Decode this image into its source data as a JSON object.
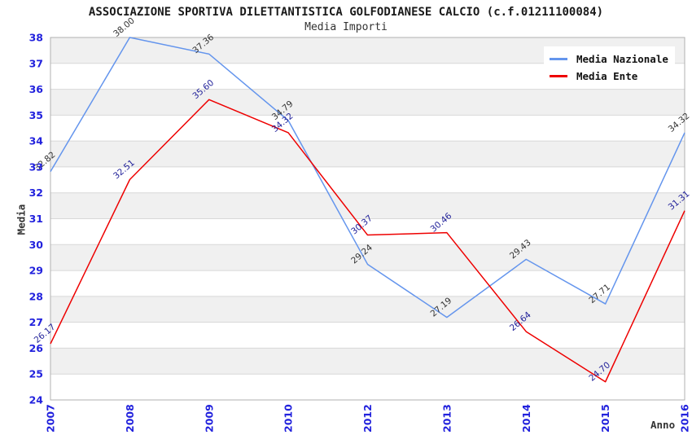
{
  "chart_data": {
    "type": "line",
    "title": "ASSOCIAZIONE SPORTIVA DILETTANTISTICA GOLFODIANESE CALCIO (c.f.01211100084)",
    "subtitle": "Media Importi",
    "xlabel": "Anno",
    "ylabel": "Media",
    "categories": [
      "2007",
      "2008",
      "2009",
      "2010",
      "2012",
      "2013",
      "2014",
      "2015",
      "2016"
    ],
    "series": [
      {
        "name": "Media Nazionale",
        "color": "#6495ED",
        "label_color": "#333333",
        "values": [
          32.82,
          38.0,
          37.36,
          34.79,
          29.24,
          27.19,
          29.43,
          27.71,
          34.32
        ]
      },
      {
        "name": "Media Ente",
        "color": "#EE0000",
        "label_color": "#22229A",
        "values": [
          26.17,
          32.51,
          35.6,
          34.32,
          30.37,
          30.46,
          26.64,
          24.7,
          31.31
        ]
      }
    ],
    "ylim": [
      24,
      38
    ],
    "y_step": 1,
    "value_label_decimals": 2,
    "axis_tick_color": "#2222DD",
    "band_color": "#f0f0f0",
    "grid": "horizontal-bands",
    "legend_position": "top-right"
  }
}
